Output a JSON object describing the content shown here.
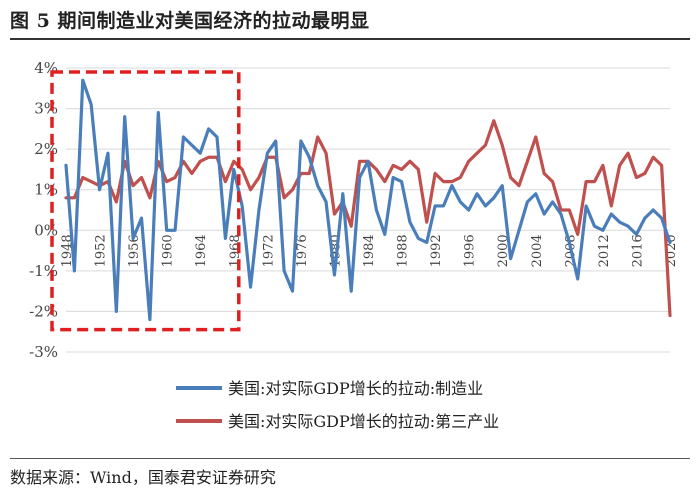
{
  "title": "图 5 期间制造业对美国经济的拉动最明显",
  "source": "数据来源：Wind，国泰君安证券研究",
  "chart_data": {
    "type": "line",
    "ylim": [
      -3,
      4
    ],
    "yticks": [
      -3,
      -2,
      -1,
      0,
      1,
      2,
      3,
      4
    ],
    "ytick_labels": [
      "-3%",
      "-2%",
      "-1%",
      "0%",
      "1%",
      "2%",
      "3%",
      "4%"
    ],
    "xlim": [
      1948,
      2020
    ],
    "xticks": [
      "1948",
      "1952",
      "1956",
      "1960",
      "1964",
      "1968",
      "1972",
      "1976",
      "1980",
      "1984",
      "1988",
      "1992",
      "1996",
      "2000",
      "2004",
      "2008",
      "2012",
      "2016",
      "2020"
    ],
    "highlight_box": {
      "from": 1948,
      "to": 1968
    },
    "colors": {
      "manufacturing": "#4a7ebb",
      "tertiary": "#c0504d",
      "highlight": "#e02020"
    },
    "series": [
      {
        "name": "美国:对实际GDP增长的拉动:制造业",
        "x": [
          1948,
          1949,
          1950,
          1951,
          1952,
          1953,
          1954,
          1955,
          1956,
          1957,
          1958,
          1959,
          1960,
          1961,
          1962,
          1963,
          1964,
          1965,
          1966,
          1967,
          1968,
          1969,
          1970,
          1971,
          1972,
          1973,
          1974,
          1975,
          1976,
          1977,
          1978,
          1979,
          1980,
          1981,
          1982,
          1983,
          1984,
          1985,
          1986,
          1987,
          1988,
          1989,
          1990,
          1991,
          1992,
          1993,
          1994,
          1995,
          1996,
          1997,
          1998,
          1999,
          2000,
          2001,
          2002,
          2003,
          2004,
          2005,
          2006,
          2007,
          2008,
          2009,
          2010,
          2011,
          2012,
          2013,
          2014,
          2015,
          2016,
          2017,
          2018,
          2019,
          2020
        ],
        "values": [
          1.6,
          -1.0,
          3.7,
          3.1,
          1.0,
          1.9,
          -2.0,
          2.8,
          -0.2,
          0.3,
          -2.2,
          2.9,
          0.0,
          0.0,
          2.3,
          2.1,
          1.9,
          2.5,
          2.3,
          -0.2,
          1.5,
          0.6,
          -1.4,
          0.5,
          1.9,
          2.2,
          -1.0,
          -1.5,
          2.2,
          1.8,
          1.1,
          0.7,
          -1.1,
          0.9,
          -1.5,
          1.3,
          1.7,
          0.5,
          -0.1,
          1.3,
          1.2,
          0.2,
          -0.2,
          -0.3,
          0.6,
          0.6,
          1.1,
          0.7,
          0.5,
          0.9,
          0.6,
          0.8,
          1.1,
          -0.7,
          0.0,
          0.7,
          0.9,
          0.4,
          0.7,
          0.4,
          -0.3,
          -1.2,
          0.6,
          0.1,
          0.0,
          0.4,
          0.2,
          0.1,
          -0.1,
          0.3,
          0.5,
          0.3,
          -0.3
        ]
      },
      {
        "name": "美国:对实际GDP增长的拉动:第三产业",
        "x": [
          1948,
          1949,
          1950,
          1951,
          1952,
          1953,
          1954,
          1955,
          1956,
          1957,
          1958,
          1959,
          1960,
          1961,
          1962,
          1963,
          1964,
          1965,
          1966,
          1967,
          1968,
          1969,
          1970,
          1971,
          1972,
          1973,
          1974,
          1975,
          1976,
          1977,
          1978,
          1979,
          1980,
          1981,
          1982,
          1983,
          1984,
          1985,
          1986,
          1987,
          1988,
          1989,
          1990,
          1991,
          1992,
          1993,
          1994,
          1995,
          1996,
          1997,
          1998,
          1999,
          2000,
          2001,
          2002,
          2003,
          2004,
          2005,
          2006,
          2007,
          2008,
          2009,
          2010,
          2011,
          2012,
          2013,
          2014,
          2015,
          2016,
          2017,
          2018,
          2019,
          2020
        ],
        "values": [
          0.8,
          0.8,
          1.3,
          1.2,
          1.1,
          1.2,
          0.7,
          1.7,
          1.1,
          1.3,
          0.8,
          1.7,
          1.2,
          1.3,
          1.7,
          1.4,
          1.7,
          1.8,
          1.8,
          1.2,
          1.7,
          1.5,
          1.0,
          1.3,
          1.8,
          1.8,
          0.8,
          1.0,
          1.4,
          1.4,
          2.3,
          1.9,
          0.4,
          0.7,
          0.1,
          1.7,
          1.7,
          1.5,
          1.2,
          1.6,
          1.5,
          1.7,
          1.5,
          0.2,
          1.4,
          1.2,
          1.2,
          1.3,
          1.7,
          1.9,
          2.1,
          2.7,
          2.1,
          1.3,
          1.1,
          1.7,
          2.3,
          1.4,
          1.2,
          0.5,
          0.5,
          -0.1,
          1.2,
          1.2,
          1.6,
          0.6,
          1.6,
          1.9,
          1.3,
          1.4,
          1.8,
          1.6,
          -2.1
        ]
      }
    ]
  }
}
